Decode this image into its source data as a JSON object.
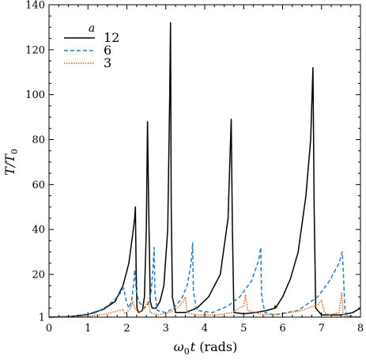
{
  "chart_data": {
    "type": "line",
    "xlabel_italic": "ω",
    "xlabel_sub": "0",
    "xlabel_tail": "t (rads)",
    "ylabel_main": "T/T",
    "ylabel_sub": "0",
    "xlim": [
      0,
      8
    ],
    "ylim": [
      1,
      140
    ],
    "xticks": [
      0,
      1,
      2,
      3,
      4,
      5,
      6,
      7,
      8
    ],
    "yticks": [
      1,
      20,
      40,
      60,
      80,
      100,
      120,
      140
    ],
    "ytick_labels": [
      "1",
      "20",
      "40",
      "60",
      "80",
      "100",
      "120",
      "140"
    ],
    "xtick_labels": [
      "0",
      "1",
      "2",
      "3",
      "4",
      "5",
      "6",
      "7",
      "8"
    ],
    "grid": false,
    "legend": {
      "title": "a",
      "position": "top-left"
    },
    "series": [
      {
        "name": "12",
        "color": "#000000",
        "style": "solid",
        "points": [
          [
            0,
            1
          ],
          [
            0.5,
            1.2
          ],
          [
            1.0,
            2.2
          ],
          [
            1.4,
            4.5
          ],
          [
            1.7,
            8
          ],
          [
            1.9,
            15
          ],
          [
            2.05,
            25
          ],
          [
            2.15,
            38
          ],
          [
            2.2,
            45
          ],
          [
            2.22,
            50
          ],
          [
            2.24,
            20
          ],
          [
            2.26,
            5
          ],
          [
            2.3,
            3
          ],
          [
            2.4,
            4
          ],
          [
            2.45,
            10
          ],
          [
            2.5,
            40
          ],
          [
            2.53,
            88
          ],
          [
            2.56,
            50
          ],
          [
            2.6,
            8
          ],
          [
            2.65,
            5
          ],
          [
            2.75,
            5
          ],
          [
            2.85,
            8
          ],
          [
            2.95,
            15
          ],
          [
            3.05,
            40
          ],
          [
            3.1,
            100
          ],
          [
            3.12,
            132
          ],
          [
            3.14,
            50
          ],
          [
            3.17,
            10
          ],
          [
            3.25,
            3
          ],
          [
            3.5,
            3
          ],
          [
            3.8,
            5
          ],
          [
            4.1,
            10
          ],
          [
            4.4,
            20
          ],
          [
            4.6,
            45
          ],
          [
            4.68,
            89
          ],
          [
            4.71,
            40
          ],
          [
            4.75,
            3
          ],
          [
            5.0,
            2.5
          ],
          [
            5.3,
            3
          ],
          [
            5.6,
            4
          ],
          [
            5.8,
            5
          ],
          [
            5.81,
            6
          ],
          [
            5.82,
            5
          ],
          [
            6.0,
            10
          ],
          [
            6.2,
            18
          ],
          [
            6.4,
            30
          ],
          [
            6.6,
            55
          ],
          [
            6.72,
            80
          ],
          [
            6.78,
            112
          ],
          [
            6.81,
            50
          ],
          [
            6.85,
            5
          ],
          [
            7.0,
            2
          ],
          [
            7.5,
            2
          ],
          [
            7.8,
            3
          ],
          [
            8.0,
            5
          ]
        ]
      },
      {
        "name": "6",
        "color": "#2a7bbf",
        "style": "dashed",
        "points": [
          [
            0,
            1
          ],
          [
            0.8,
            1.5
          ],
          [
            1.2,
            3
          ],
          [
            1.5,
            6
          ],
          [
            1.7,
            9
          ],
          [
            1.85,
            12
          ],
          [
            1.92,
            14
          ],
          [
            1.97,
            9
          ],
          [
            2.05,
            5
          ],
          [
            2.12,
            8
          ],
          [
            2.17,
            15
          ],
          [
            2.2,
            22
          ],
          [
            2.24,
            13
          ],
          [
            2.3,
            8
          ],
          [
            2.45,
            5
          ],
          [
            2.55,
            7
          ],
          [
            2.62,
            12
          ],
          [
            2.67,
            22
          ],
          [
            2.7,
            32
          ],
          [
            2.72,
            12
          ],
          [
            2.78,
            4
          ],
          [
            3.0,
            3
          ],
          [
            3.2,
            5
          ],
          [
            3.4,
            9
          ],
          [
            3.55,
            15
          ],
          [
            3.65,
            25
          ],
          [
            3.69,
            34
          ],
          [
            3.71,
            12
          ],
          [
            3.8,
            4
          ],
          [
            4.2,
            3
          ],
          [
            4.6,
            6
          ],
          [
            4.9,
            10
          ],
          [
            5.2,
            17
          ],
          [
            5.38,
            26
          ],
          [
            5.44,
            32
          ],
          [
            5.46,
            10
          ],
          [
            5.55,
            3
          ],
          [
            5.8,
            2
          ],
          [
            6.4,
            4
          ],
          [
            6.9,
            10
          ],
          [
            7.2,
            17
          ],
          [
            7.45,
            25
          ],
          [
            7.53,
            30
          ],
          [
            7.55,
            25
          ],
          [
            7.6,
            5
          ],
          [
            7.65,
            1.5
          ],
          [
            8.0,
            1
          ]
        ]
      },
      {
        "name": "3",
        "color": "#d4691b",
        "style": "dotted",
        "points": [
          [
            0,
            1
          ],
          [
            1.0,
            1.3
          ],
          [
            1.5,
            2.5
          ],
          [
            1.8,
            4
          ],
          [
            1.9,
            4.5
          ],
          [
            1.95,
            2.5
          ],
          [
            2.1,
            5
          ],
          [
            2.15,
            8
          ],
          [
            2.2,
            5
          ],
          [
            2.3,
            3
          ],
          [
            2.45,
            5
          ],
          [
            2.5,
            7
          ],
          [
            2.55,
            8
          ],
          [
            2.6,
            3
          ],
          [
            2.8,
            2
          ],
          [
            3.1,
            3
          ],
          [
            3.3,
            5
          ],
          [
            3.45,
            8
          ],
          [
            3.5,
            10
          ],
          [
            3.55,
            3
          ],
          [
            3.8,
            2
          ],
          [
            4.3,
            2
          ],
          [
            4.7,
            3
          ],
          [
            5.0,
            6
          ],
          [
            5.05,
            11
          ],
          [
            5.1,
            4
          ],
          [
            5.5,
            2
          ],
          [
            6.0,
            2.5
          ],
          [
            6.5,
            4
          ],
          [
            6.9,
            6.5
          ],
          [
            7.0,
            8.5
          ],
          [
            7.08,
            3
          ],
          [
            7.2,
            2
          ],
          [
            7.45,
            3
          ],
          [
            7.52,
            12
          ],
          [
            7.55,
            3
          ],
          [
            7.6,
            1.5
          ],
          [
            8.0,
            1
          ]
        ]
      }
    ]
  }
}
